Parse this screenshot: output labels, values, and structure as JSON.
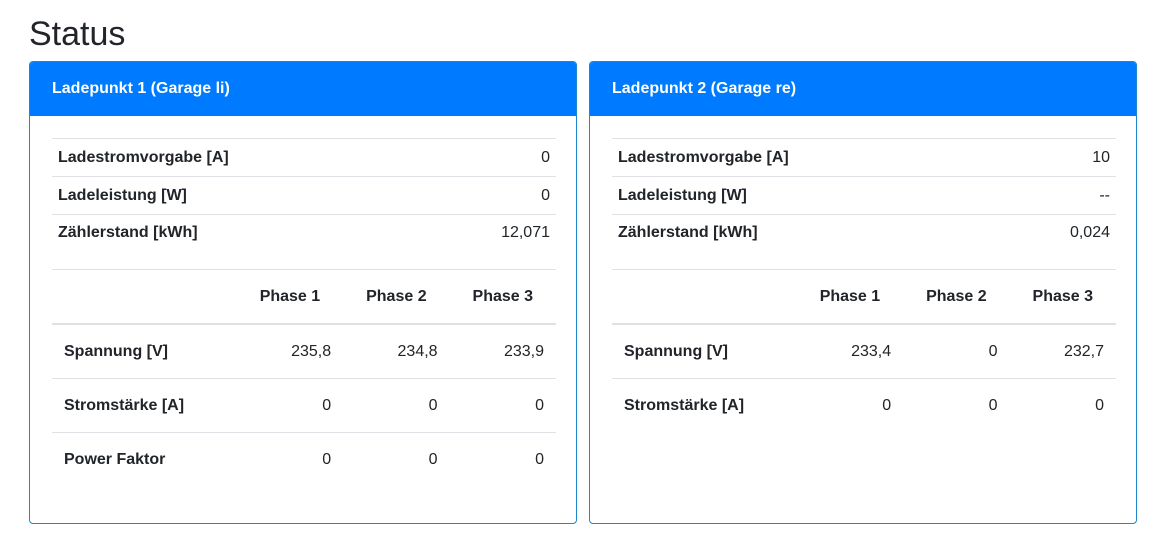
{
  "page": {
    "title": "Status"
  },
  "cards": [
    {
      "title": "Ladepunkt 1 (Garage li)",
      "summary": [
        {
          "label": "Ladestromvorgabe [A]",
          "value": "0"
        },
        {
          "label": "Ladeleistung [W]",
          "value": "0"
        },
        {
          "label": "Zählerstand [kWh]",
          "value": "12,071"
        }
      ],
      "phase_headers": [
        "Phase 1",
        "Phase 2",
        "Phase 3"
      ],
      "phase_rows": [
        {
          "label": "Spannung [V]",
          "values": [
            "235,8",
            "234,8",
            "233,9"
          ]
        },
        {
          "label": "Stromstärke [A]",
          "values": [
            "0",
            "0",
            "0"
          ]
        },
        {
          "label": "Power Faktor",
          "values": [
            "0",
            "0",
            "0"
          ]
        }
      ]
    },
    {
      "title": "Ladepunkt 2 (Garage re)",
      "summary": [
        {
          "label": "Ladestromvorgabe [A]",
          "value": "10"
        },
        {
          "label": "Ladeleistung [W]",
          "value": "--"
        },
        {
          "label": "Zählerstand [kWh]",
          "value": "0,024"
        }
      ],
      "phase_headers": [
        "Phase 1",
        "Phase 2",
        "Phase 3"
      ],
      "phase_rows": [
        {
          "label": "Spannung [V]",
          "values": [
            "233,4",
            "0",
            "232,7"
          ]
        },
        {
          "label": "Stromstärke [A]",
          "values": [
            "0",
            "0",
            "0"
          ]
        }
      ]
    }
  ],
  "colors": {
    "header_bg": "#007bff",
    "card_border": "#1c87c9",
    "text": "#212529",
    "rule": "#dee2e6"
  }
}
